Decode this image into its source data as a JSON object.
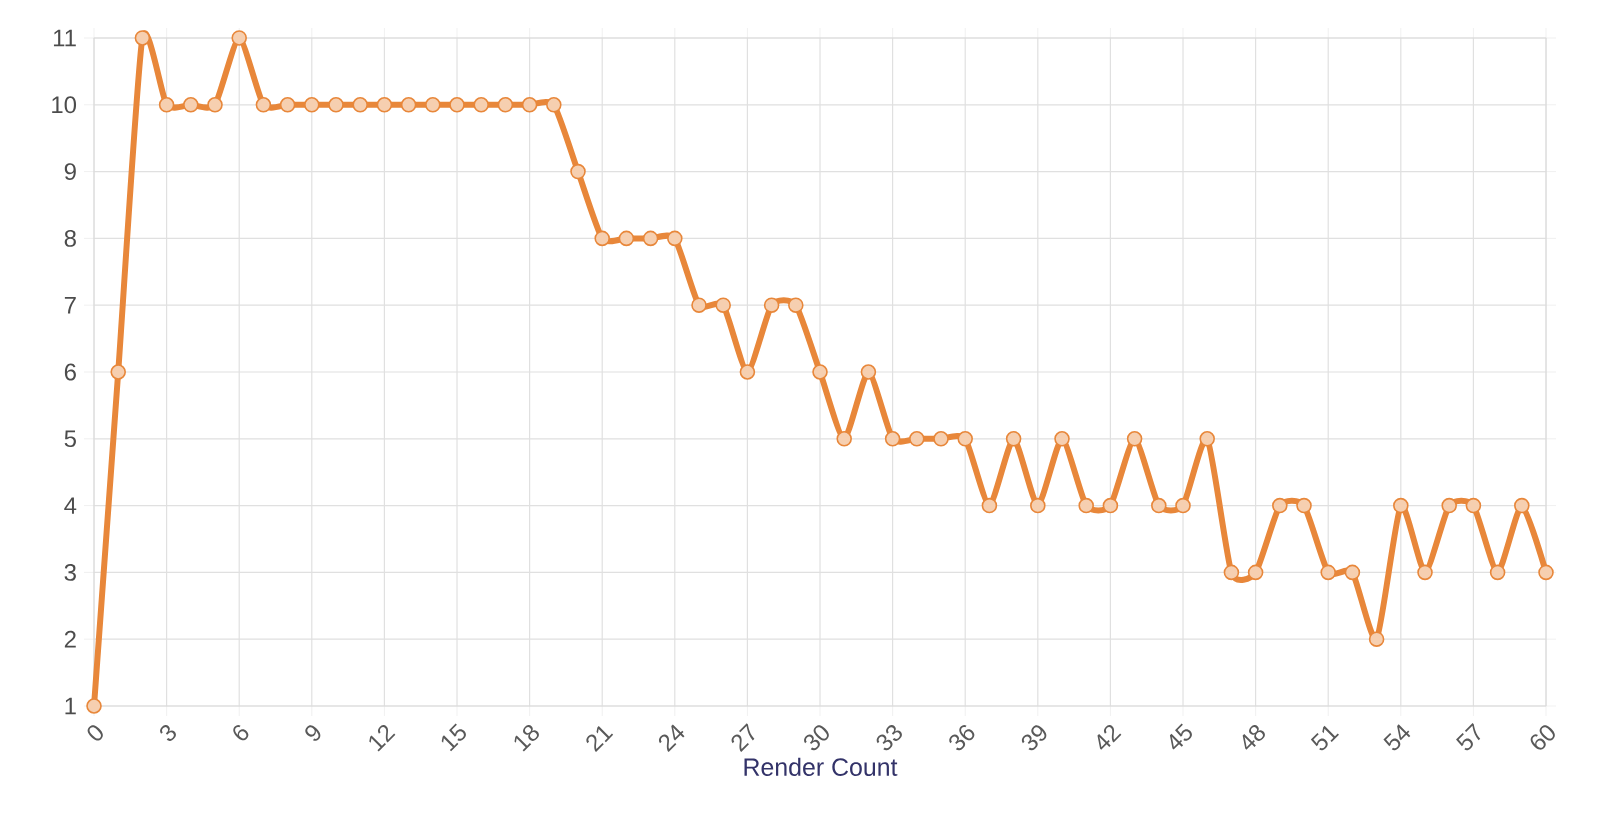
{
  "chart_data": {
    "type": "line",
    "xlabel": "Render Count",
    "x": [
      0,
      1,
      2,
      3,
      4,
      5,
      6,
      7,
      8,
      9,
      10,
      11,
      12,
      13,
      14,
      15,
      16,
      17,
      18,
      19,
      20,
      21,
      22,
      23,
      24,
      25,
      26,
      27,
      28,
      29,
      30,
      31,
      32,
      33,
      34,
      35,
      36,
      37,
      38,
      39,
      40,
      41,
      42,
      43,
      44,
      45,
      46,
      47,
      48,
      49,
      50,
      51,
      52,
      53,
      54,
      55,
      56,
      57,
      58,
      59,
      60
    ],
    "values": [
      1,
      6,
      11,
      10,
      10,
      10,
      11,
      10,
      10,
      10,
      10,
      10,
      10,
      10,
      10,
      10,
      10,
      10,
      10,
      10,
      9,
      8,
      8,
      8,
      8,
      7,
      7,
      6,
      7,
      7,
      6,
      5,
      6,
      5,
      5,
      5,
      5,
      4,
      5,
      4,
      5,
      4,
      4,
      5,
      4,
      4,
      5,
      3,
      3,
      4,
      4,
      3,
      3,
      2,
      4,
      3,
      4,
      4,
      3,
      4,
      3
    ],
    "color": "#e8873a",
    "marker": "circle",
    "line_style": "solid",
    "grid": true,
    "xlim": [
      0,
      60
    ],
    "xticks": [
      0,
      3,
      6,
      9,
      12,
      15,
      18,
      21,
      24,
      27,
      30,
      33,
      36,
      39,
      42,
      45,
      48,
      51,
      54,
      57,
      60
    ],
    "ylim": [
      1,
      11
    ],
    "yticks": [
      1,
      2,
      3,
      4,
      5,
      6,
      7,
      8,
      9,
      10,
      11
    ]
  }
}
